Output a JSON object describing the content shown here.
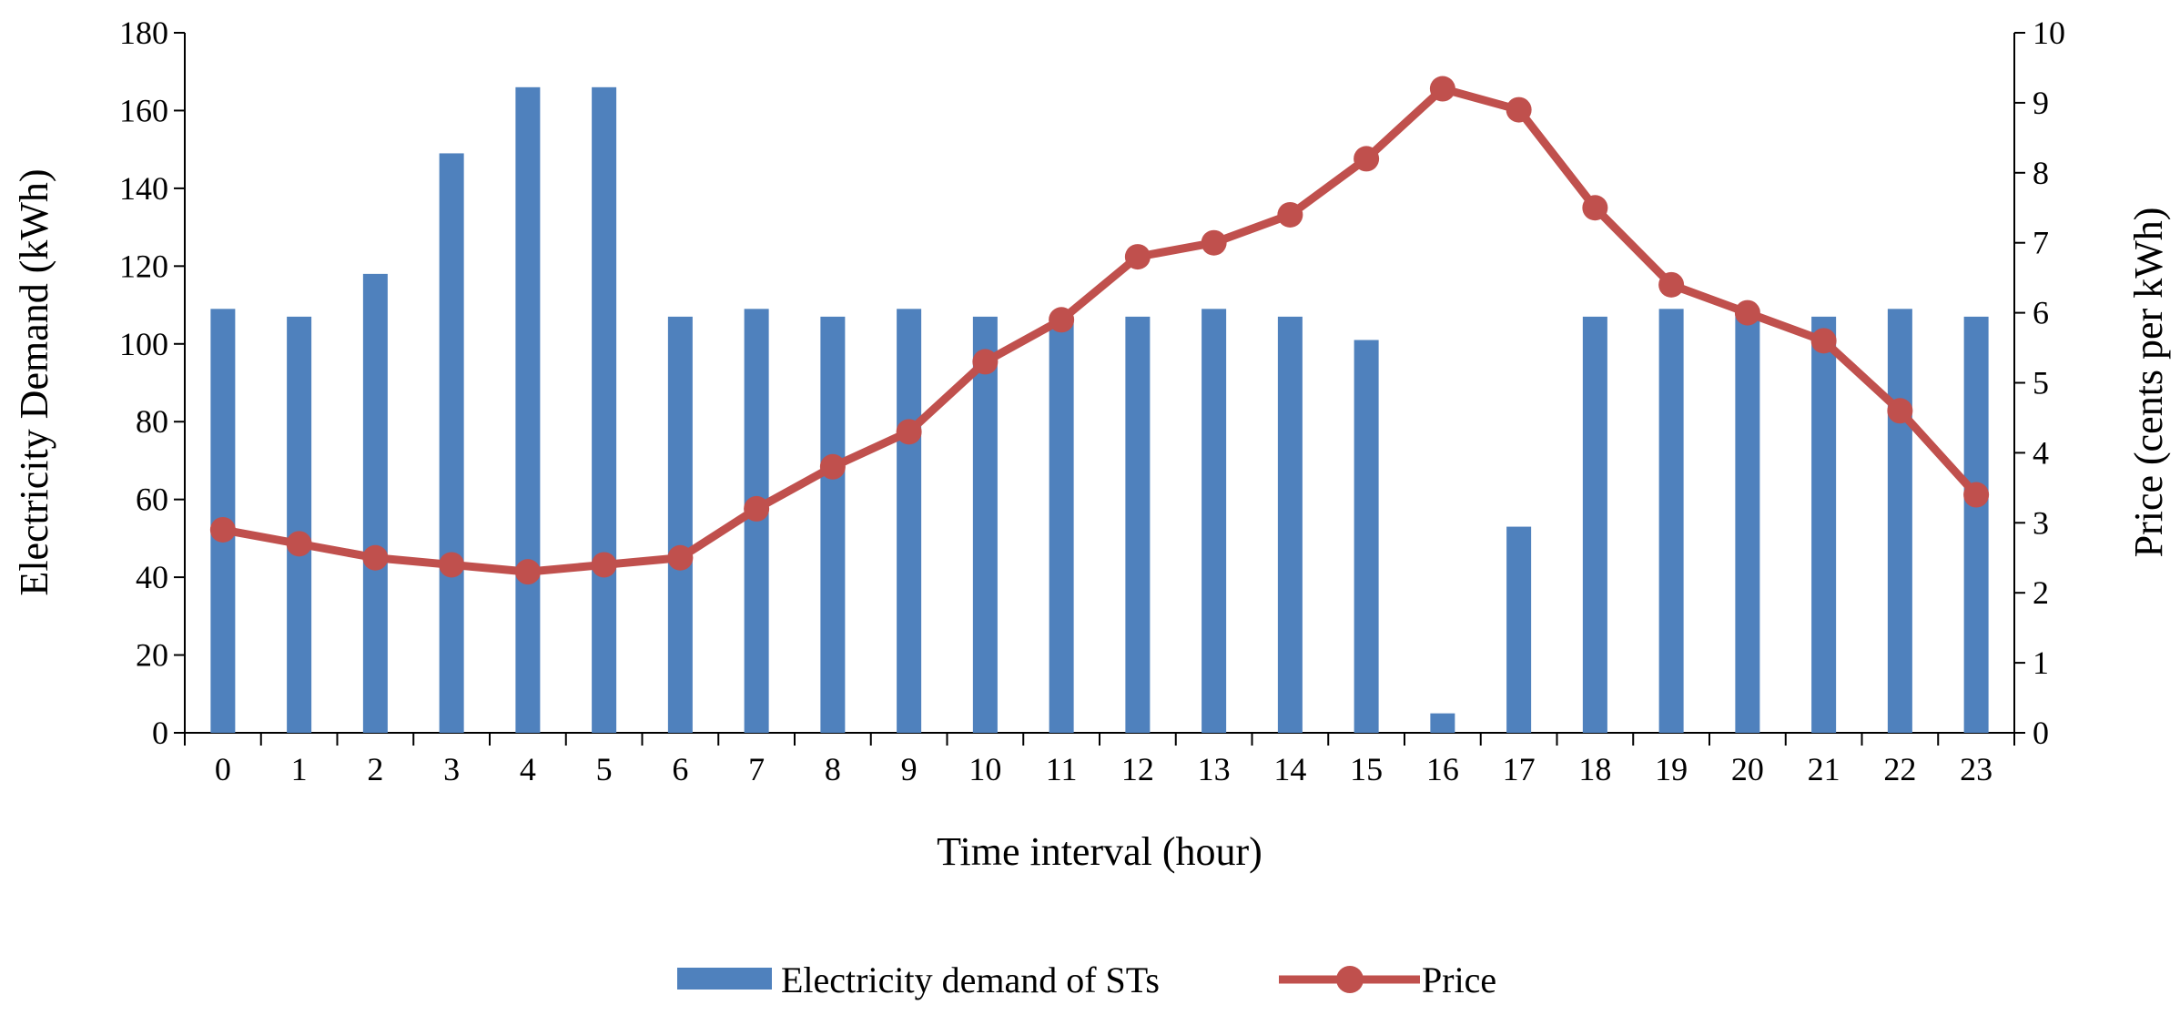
{
  "chart_data": {
    "type": "bar+line",
    "title": "",
    "xlabel": "Time interval (hour)",
    "ylabel_left": "Electricity Demand (kWh)",
    "ylabel_right": "Price (cents per kWh)",
    "categories": [
      "0",
      "1",
      "2",
      "3",
      "4",
      "5",
      "6",
      "7",
      "8",
      "9",
      "10",
      "11",
      "12",
      "13",
      "14",
      "15",
      "16",
      "17",
      "18",
      "19",
      "20",
      "21",
      "22",
      "23"
    ],
    "y_left_lim": [
      0,
      180
    ],
    "y_left_ticks": [
      "0",
      "20",
      "40",
      "60",
      "80",
      "100",
      "120",
      "140",
      "160",
      "180"
    ],
    "y_right_lim": [
      0,
      10
    ],
    "y_right_ticks": [
      "0",
      "1",
      "2",
      "3",
      "4",
      "5",
      "6",
      "7",
      "8",
      "9",
      "10"
    ],
    "grid": false,
    "legend_position": "bottom",
    "series": [
      {
        "name": "Electricity demand of STs",
        "type": "bar",
        "axis": "left",
        "color": "#4F81BD",
        "values": [
          109,
          107,
          118,
          149,
          166,
          166,
          107,
          109,
          107,
          109,
          107,
          107,
          107,
          109,
          107,
          101,
          5,
          53,
          107,
          109,
          109,
          107,
          109,
          107
        ]
      },
      {
        "name": "Price",
        "type": "line",
        "axis": "right",
        "color": "#C0504D",
        "values": [
          2.9,
          2.7,
          2.5,
          2.4,
          2.3,
          2.4,
          2.5,
          3.2,
          3.8,
          4.3,
          5.3,
          5.9,
          6.8,
          7.0,
          7.4,
          8.2,
          9.2,
          8.9,
          7.5,
          6.4,
          6.0,
          5.6,
          4.6,
          3.4
        ]
      }
    ]
  }
}
